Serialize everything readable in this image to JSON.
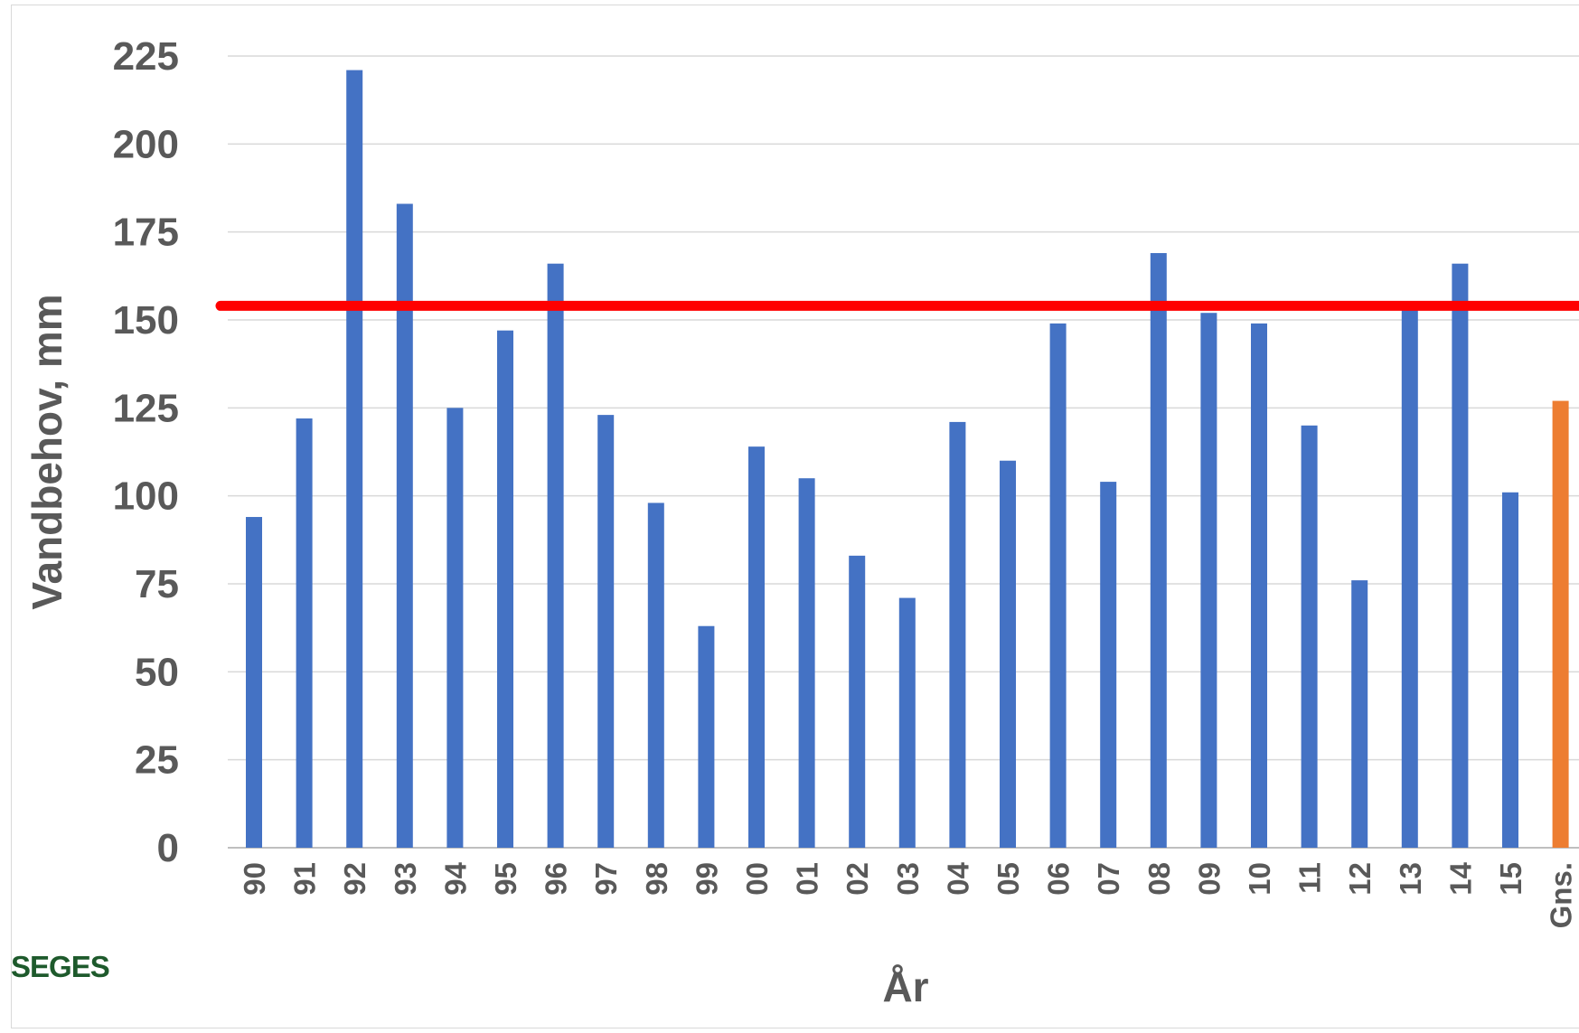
{
  "chart_data": {
    "type": "bar",
    "title": "",
    "xlabel": "År",
    "ylabel": "Vandbehov, mm",
    "ylim": [
      0,
      225
    ],
    "yticks": [
      0,
      25,
      50,
      75,
      100,
      125,
      150,
      175,
      200,
      225
    ],
    "categories": [
      "90",
      "91",
      "92",
      "93",
      "94",
      "95",
      "96",
      "97",
      "98",
      "99",
      "00",
      "01",
      "02",
      "03",
      "04",
      "05",
      "06",
      "07",
      "08",
      "09",
      "10",
      "11",
      "12",
      "13",
      "14",
      "15",
      "Gns."
    ],
    "values": [
      94,
      122,
      221,
      183,
      125,
      147,
      166,
      123,
      98,
      63,
      114,
      105,
      83,
      71,
      121,
      110,
      149,
      104,
      169,
      152,
      149,
      120,
      76,
      153,
      166,
      101,
      127
    ],
    "reference_line": 154,
    "grid": true,
    "legend": "none",
    "colors": {
      "bar": "#4472c4",
      "average_bar": "#ed7d31",
      "reference_line": "#ff0000",
      "gridline": "#d9d9d9",
      "text": "#595959",
      "logo": "#1e5a2c"
    }
  },
  "logo": {
    "text": "SEGES"
  }
}
